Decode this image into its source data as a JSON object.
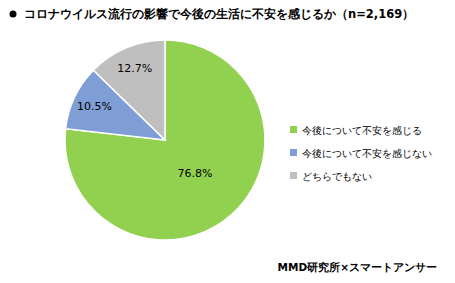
{
  "chart_data": {
    "type": "pie",
    "title": "コロナウイルス流行の影響で今後の生活に不安を感じるか（n=2,169）",
    "categories": [
      "今後について不安を感じる",
      "今後について不安を感じない",
      "どちらでもない"
    ],
    "values": [
      76.8,
      10.5,
      12.7
    ],
    "value_labels": [
      "76.8%",
      "10.5%",
      "12.7%"
    ],
    "colors": [
      "#92d050",
      "#7f9ed6",
      "#bfbfbf"
    ],
    "data_labels": true,
    "legend": "right",
    "source": "MMD研究所×スマートアンサー"
  }
}
